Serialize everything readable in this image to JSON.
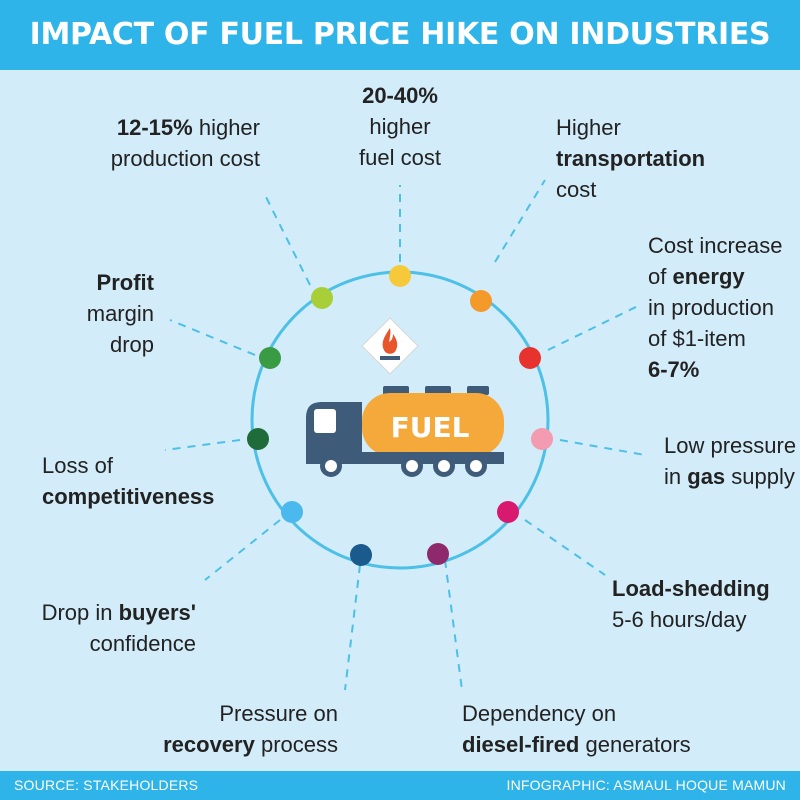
{
  "title": "IMPACT OF FUEL PRICE HIKE ON INDUSTRIES",
  "footer": {
    "source": "SOURCE: STAKEHOLDERS",
    "credit": "INFOGRAPHIC: ASMAUL HOQUE MAMUN"
  },
  "truck": {
    "tank_label": "FUEL"
  },
  "colors": {
    "header_bg": "#2eb4e8",
    "page_bg": "#d3ecf9",
    "ring": "#4cc0e6",
    "truck_body": "#3e5b7a",
    "tank": "#f5a93b",
    "flame": "#e8542b"
  },
  "impacts": {
    "higher_fuel_cost": {
      "bold": "20-40%",
      "rest1": "higher",
      "rest2": "fuel cost",
      "dot_color": "#f6c93a"
    },
    "higher_transport": {
      "t1": "Higher",
      "bold": "transportation",
      "t3": "cost",
      "dot_color": "#f39a2a"
    },
    "energy_cost": {
      "t1": "Cost increase",
      "pre": "of ",
      "bold": "energy",
      "t3": "in production",
      "t4": "of $1-item",
      "bold2": "6-7%",
      "dot_color": "#e8322d"
    },
    "gas_pressure": {
      "t1": "Low pressure",
      "pre": "in ",
      "bold": "gas",
      "post": " supply",
      "dot_color": "#f39bb0"
    },
    "load_shedding": {
      "bold": "Load-shedding",
      "t2": "5-6 hours/day",
      "dot_color": "#d8196f"
    },
    "diesel_generators": {
      "t1": "Dependency on",
      "bold": "diesel-fired",
      "post": " generators",
      "dot_color": "#8e2a6b"
    },
    "recovery": {
      "t1": "Pressure on",
      "bold": "recovery",
      "post": " process",
      "dot_color": "#1a5a8c"
    },
    "buyers_confidence": {
      "pre": "Drop in ",
      "bold": "buyers'",
      "t2": "confidence",
      "dot_color": "#4cb9ee"
    },
    "competitiveness": {
      "t1": "Loss of",
      "bold": "competitiveness",
      "dot_color": "#1f6b3a"
    },
    "profit_margin": {
      "bold": "Profit",
      "t2": "margin",
      "t3": "drop",
      "dot_color": "#3a9b45"
    },
    "production_cost": {
      "bold": "12-15%",
      "post": " higher",
      "t2": "production cost",
      "dot_color": "#a9cf38"
    }
  }
}
